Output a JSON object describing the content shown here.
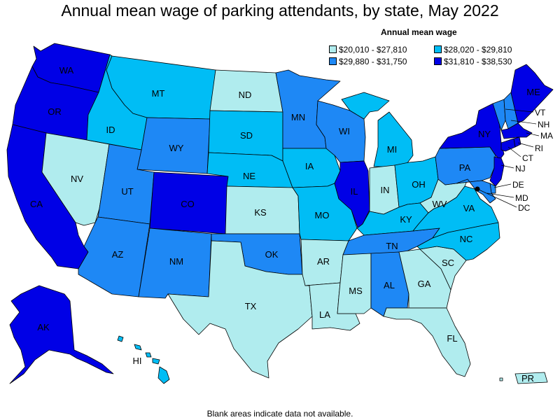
{
  "title": "Annual mean wage of parking attendants, by state, May 2022",
  "legend": {
    "title": "Annual mean wage",
    "bins": [
      {
        "label": "$20,010 - $27,810",
        "color": "#b0ecee"
      },
      {
        "label": "$28,020 - $29,810",
        "color": "#00bdf5"
      },
      {
        "label": "$29,880 - $31,750",
        "color": "#1e88f5"
      },
      {
        "label": "$31,810 - $38,530",
        "color": "#0000e6"
      }
    ]
  },
  "footnote": "Blank areas indicate data not available.",
  "states": {
    "WA": {
      "label": "WA",
      "bin": 3
    },
    "OR": {
      "label": "OR",
      "bin": 3
    },
    "CA": {
      "label": "CA",
      "bin": 3
    },
    "NV": {
      "label": "NV",
      "bin": 0
    },
    "ID": {
      "label": "ID",
      "bin": 1
    },
    "MT": {
      "label": "MT",
      "bin": 1
    },
    "WY": {
      "label": "WY",
      "bin": 2
    },
    "UT": {
      "label": "UT",
      "bin": 2
    },
    "AZ": {
      "label": "AZ",
      "bin": 2
    },
    "CO": {
      "label": "CO",
      "bin": 3
    },
    "NM": {
      "label": "NM",
      "bin": 2
    },
    "ND": {
      "label": "ND",
      "bin": 0
    },
    "SD": {
      "label": "SD",
      "bin": 1
    },
    "NE": {
      "label": "NE",
      "bin": 1
    },
    "KS": {
      "label": "KS",
      "bin": 0
    },
    "OK": {
      "label": "OK",
      "bin": 2
    },
    "TX": {
      "label": "TX",
      "bin": 0
    },
    "MN": {
      "label": "MN",
      "bin": 2
    },
    "IA": {
      "label": "IA",
      "bin": 1
    },
    "MO": {
      "label": "MO",
      "bin": 1
    },
    "AR": {
      "label": "AR",
      "bin": 0
    },
    "LA": {
      "label": "LA",
      "bin": 0
    },
    "WI": {
      "label": "WI",
      "bin": 2
    },
    "IL": {
      "label": "IL",
      "bin": 3
    },
    "MI": {
      "label": "MI",
      "bin": 1
    },
    "IN": {
      "label": "IN",
      "bin": 0
    },
    "OH": {
      "label": "OH",
      "bin": 1
    },
    "KY": {
      "label": "KY",
      "bin": 1
    },
    "TN": {
      "label": "TN",
      "bin": 2
    },
    "MS": {
      "label": "MS",
      "bin": 0
    },
    "AL": {
      "label": "AL",
      "bin": 2
    },
    "GA": {
      "label": "GA",
      "bin": 0
    },
    "FL": {
      "label": "FL",
      "bin": 0
    },
    "SC": {
      "label": "SC",
      "bin": 0
    },
    "NC": {
      "label": "NC",
      "bin": 1
    },
    "VA": {
      "label": "VA",
      "bin": 1
    },
    "WV": {
      "label": "WV",
      "bin": 0
    },
    "PA": {
      "label": "PA",
      "bin": 2
    },
    "NY": {
      "label": "NY",
      "bin": 3
    },
    "VT": {
      "label": "VT",
      "bin": 2
    },
    "NH": {
      "label": "NH",
      "bin": 2
    },
    "ME": {
      "label": "ME",
      "bin": 3
    },
    "MA": {
      "label": "MA",
      "bin": 3
    },
    "RI": {
      "label": "RI",
      "bin": 3
    },
    "CT": {
      "label": "CT",
      "bin": 3
    },
    "NJ": {
      "label": "NJ",
      "bin": 3
    },
    "DE": {
      "label": "DE",
      "bin": 2
    },
    "MD": {
      "label": "MD",
      "bin": 2
    },
    "DC": {
      "label": "DC",
      "bin": 3
    },
    "AK": {
      "label": "AK",
      "bin": 3
    },
    "HI": {
      "label": "HI",
      "bin": 1
    },
    "PR": {
      "label": "PR",
      "bin": 0
    }
  }
}
